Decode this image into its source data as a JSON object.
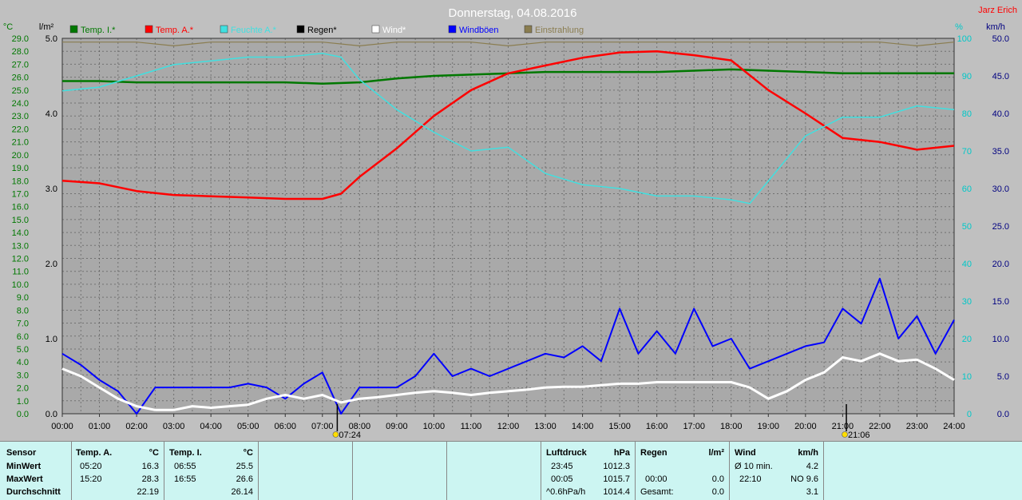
{
  "header": {
    "title": "Donnerstag, 04.08.2016",
    "author": "Jarz Erich"
  },
  "colors": {
    "background": "#c0c0c0",
    "plot_bg": "#a9a9a9",
    "temp_indoor": "#007800",
    "temp_outdoor": "#ff0000",
    "humidity": "#40e0e0",
    "rain": "#000000",
    "wind": "#ffffff",
    "gust": "#0000ff",
    "radiation": "#8a7d50",
    "left_axis_text": "#007800",
    "right_axis_humidity": "#00c8c8",
    "right_axis_wind": "#000080"
  },
  "chart_data": {
    "type": "line",
    "title": "Donnerstag, 04.08.2016",
    "x_ticks": [
      "00:00",
      "01:00",
      "02:00",
      "03:00",
      "04:00",
      "05:00",
      "06:00",
      "07:00",
      "08:00",
      "09:00",
      "10:00",
      "11:00",
      "12:00",
      "13:00",
      "14:00",
      "15:00",
      "16:00",
      "17:00",
      "18:00",
      "19:00",
      "20:00",
      "21:00",
      "22:00",
      "23:00",
      "24:00"
    ],
    "axes": {
      "temp": {
        "label": "°C",
        "min": 0,
        "max": 29,
        "ticks": [
          "0.0",
          "1.0",
          "2.0",
          "3.0",
          "4.0",
          "5.0",
          "6.0",
          "7.0",
          "8.0",
          "9.0",
          "10.0",
          "11.0",
          "12.0",
          "13.0",
          "14.0",
          "15.0",
          "16.0",
          "17.0",
          "18.0",
          "19.0",
          "20.0",
          "21.0",
          "22.0",
          "23.0",
          "24.0",
          "25.0",
          "26.0",
          "27.0",
          "28.0",
          "29.0"
        ]
      },
      "rain": {
        "label": "l/m²",
        "min": 0,
        "max": 5,
        "ticks": [
          "0.0",
          "1.0",
          "2.0",
          "3.0",
          "4.0",
          "5.0"
        ]
      },
      "humidity": {
        "label": "%",
        "min": 0,
        "max": 100,
        "ticks": [
          "0",
          "10",
          "20",
          "30",
          "40",
          "50",
          "60",
          "70",
          "80",
          "90",
          "100"
        ]
      },
      "wind": {
        "label": "km/h",
        "min": 0,
        "max": 50,
        "ticks": [
          "0.0",
          "5.0",
          "10.0",
          "15.0",
          "20.0",
          "25.0",
          "30.0",
          "35.0",
          "40.0",
          "45.0",
          "50.0"
        ]
      }
    },
    "legend": [
      {
        "name": "Temp. I.*",
        "color": "#007800"
      },
      {
        "name": "Temp. A.*",
        "color": "#ff0000"
      },
      {
        "name": "Feuchte A.*",
        "color": "#40e0e0"
      },
      {
        "name": "Regen*",
        "color": "#000000"
      },
      {
        "name": "Wind*",
        "color": "#ffffff"
      },
      {
        "name": "Windböen",
        "color": "#0000ff"
      },
      {
        "name": "Einstrahlung",
        "color": "#8a7d50"
      }
    ],
    "legend_placement": "top",
    "grid": true,
    "markers": [
      {
        "time": 7.4,
        "label": "07:24"
      },
      {
        "time": 21.1,
        "label": "21:06"
      }
    ],
    "series": [
      {
        "name": "Temp. I.*",
        "axis": "temp",
        "x": [
          0,
          1,
          2,
          3,
          4,
          5,
          6,
          7,
          8,
          9,
          10,
          11,
          12,
          13,
          14,
          15,
          16,
          17,
          18,
          19,
          20,
          21,
          22,
          23,
          24
        ],
        "y": [
          25.7,
          25.7,
          25.6,
          25.6,
          25.6,
          25.6,
          25.6,
          25.5,
          25.6,
          25.9,
          26.1,
          26.2,
          26.3,
          26.4,
          26.4,
          26.4,
          26.4,
          26.5,
          26.6,
          26.5,
          26.4,
          26.3,
          26.3,
          26.3,
          26.3
        ]
      },
      {
        "name": "Temp. A.*",
        "axis": "temp",
        "x": [
          0,
          1,
          2,
          3,
          4,
          5,
          6,
          7,
          7.5,
          8,
          9,
          10,
          11,
          12,
          13,
          14,
          15,
          16,
          17,
          18,
          19,
          20,
          21,
          22,
          23,
          24
        ],
        "y": [
          18.0,
          17.8,
          17.2,
          16.9,
          16.8,
          16.7,
          16.6,
          16.6,
          17.0,
          18.3,
          20.5,
          23.0,
          25.0,
          26.3,
          26.9,
          27.5,
          27.9,
          28.0,
          27.7,
          27.3,
          25.0,
          23.2,
          21.3,
          21.0,
          20.4,
          20.7
        ]
      },
      {
        "name": "Feuchte A.*",
        "axis": "humidity",
        "x": [
          0,
          1,
          2,
          3,
          4,
          5,
          6,
          7,
          7.5,
          8,
          9,
          10,
          11,
          12,
          13,
          14,
          15,
          16,
          17,
          18,
          18.5,
          19,
          20,
          21,
          22,
          23,
          24
        ],
        "y": [
          86,
          87,
          90,
          93,
          94,
          95,
          95,
          96,
          95,
          89,
          81,
          75,
          70,
          71,
          64,
          61,
          60,
          58,
          58,
          57,
          56,
          62,
          74,
          79,
          79,
          82,
          81
        ]
      },
      {
        "name": "Windböen",
        "axis": "wind",
        "x": [
          0,
          0.5,
          1,
          1.5,
          2,
          2.5,
          3,
          3.5,
          4,
          4.5,
          5,
          5.5,
          6,
          6.5,
          7,
          7.5,
          8,
          8.5,
          9,
          9.5,
          10,
          10.5,
          11,
          11.5,
          12,
          12.5,
          13,
          13.5,
          14,
          14.5,
          15,
          15.5,
          16,
          16.5,
          17,
          17.5,
          18,
          18.5,
          19,
          19.5,
          20,
          20.5,
          21,
          21.5,
          22,
          22.5,
          23,
          23.5,
          24
        ],
        "y": [
          8,
          6.5,
          4.5,
          3,
          0,
          3.5,
          3.5,
          3.5,
          3.5,
          3.5,
          4,
          3.5,
          2,
          4,
          5.5,
          0,
          3.5,
          3.5,
          3.5,
          5,
          8,
          5,
          6,
          5,
          6,
          7,
          8,
          7.5,
          9,
          7,
          14,
          8,
          11,
          8,
          14,
          9,
          10,
          6,
          7,
          8,
          9,
          9.5,
          14,
          12,
          18,
          10,
          13,
          8,
          12.5
        ]
      },
      {
        "name": "Wind*",
        "axis": "wind",
        "x": [
          0,
          0.5,
          1,
          1.5,
          2,
          2.5,
          3,
          3.5,
          4,
          4.5,
          5,
          5.5,
          6,
          6.5,
          7,
          7.5,
          8,
          8.5,
          9,
          9.5,
          10,
          10.5,
          11,
          11.5,
          12,
          12.5,
          13,
          13.5,
          14,
          14.5,
          15,
          15.5,
          16,
          16.5,
          17,
          17.5,
          18,
          18.5,
          19,
          19.5,
          20,
          20.5,
          21,
          21.5,
          22,
          22.5,
          23,
          23.5,
          24
        ],
        "y": [
          6,
          5,
          3.5,
          2,
          1,
          0.5,
          0.5,
          1,
          0.8,
          1,
          1.2,
          2,
          2.5,
          2,
          2.5,
          1.5,
          2,
          2.2,
          2.5,
          2.8,
          3,
          2.8,
          2.5,
          2.8,
          3,
          3.2,
          3.5,
          3.6,
          3.6,
          3.8,
          4,
          4,
          4.2,
          4.2,
          4.2,
          4.2,
          4.2,
          3.5,
          2,
          3,
          4.5,
          5.5,
          7.5,
          7,
          8,
          7,
          7.2,
          6,
          4.5
        ]
      },
      {
        "name": "Einstrahlung",
        "axis": "humidity",
        "x": [
          0,
          1,
          2,
          3,
          4,
          5,
          6,
          7,
          8,
          9,
          10,
          11,
          12,
          13,
          14,
          15,
          16,
          17,
          18,
          19,
          20,
          21,
          22,
          23,
          24
        ],
        "y": [
          99,
          99,
          99,
          98,
          99,
          99,
          99,
          99,
          98,
          99,
          99,
          99,
          98,
          99,
          99,
          99,
          99,
          99,
          99,
          99,
          99,
          99,
          99,
          98,
          99
        ]
      }
    ]
  },
  "stats": {
    "sensor": {
      "header": "Sensor",
      "min_label": "MinWert",
      "max_label": "MaxWert",
      "avg_label": "Durchschnitt"
    },
    "temp_a": {
      "header": "Temp. A.",
      "unit": "°C",
      "min_time": "05:20",
      "min_val": "16.3",
      "max_time": "15:20",
      "max_val": "28.3",
      "avg": "22.19"
    },
    "temp_i": {
      "header": "Temp. I.",
      "unit": "°C",
      "min_time": "06:55",
      "min_val": "25.5",
      "max_time": "16:55",
      "max_val": "26.6",
      "avg": "26.14"
    },
    "pressure": {
      "header": "Luftdruck",
      "unit": "hPa",
      "min_time": "23:45",
      "min_val": "1012.3",
      "max_time": "00:05",
      "max_val": "1015.7",
      "trend_label": "^0.6hPa/h",
      "trend_val": "1014.4"
    },
    "rain": {
      "header": "Regen",
      "unit": "l/m²",
      "max_time": "00:00",
      "max_val": "0.0",
      "total_label": "Gesamt:",
      "total_val": "0.0"
    },
    "wind": {
      "header": "Wind",
      "unit": "km/h",
      "avg_label": "Ø 10 min.",
      "avg_val": "4.2",
      "max_time": "22:10",
      "max_val": "NO 9.6",
      "avg2": "3.1"
    }
  }
}
